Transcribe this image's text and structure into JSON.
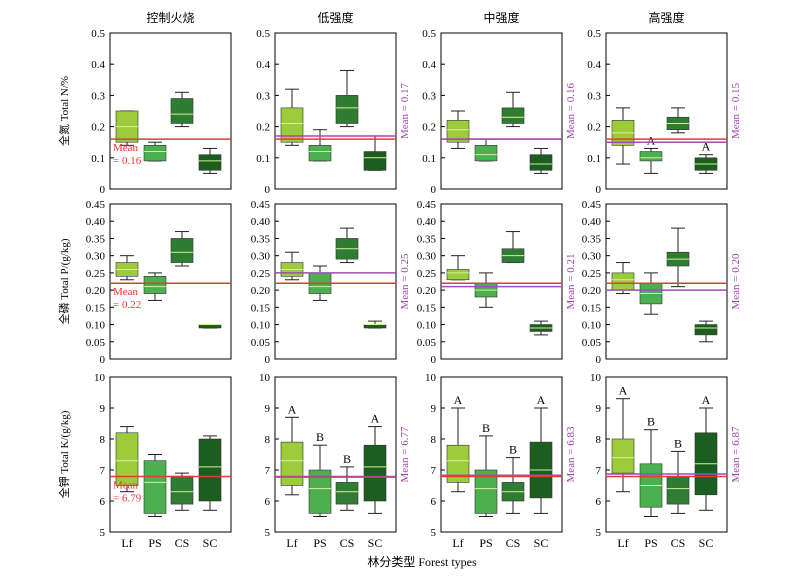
{
  "figure": {
    "xlabel": "林分类型 Forest types",
    "columns": [
      "控制火烧",
      "低强度",
      "中强度",
      "高强度"
    ],
    "categories": [
      "Lf",
      "PS",
      "CS",
      "SC"
    ],
    "colors": {
      "Lf": "#9ccc3c",
      "PS": "#4caf50",
      "CS": "#2e7d32",
      "SC": "#1b5e20",
      "control_mean_line": "#e53935",
      "treatment_mean_line": "#9c4fb5",
      "control_mean_text": "#e53935",
      "treatment_mean_text": "#a040b0"
    }
  },
  "chart_data": [
    {
      "type": "box",
      "ylabel": "全氮 Total N/%",
      "ylim": [
        0,
        0.5
      ],
      "yticks": [
        "0",
        "0.1",
        "0.2",
        "0.3",
        "0.4",
        "0.5"
      ],
      "control_mean_label": "Mean\n= 0.16",
      "control_mean": 0.16,
      "panels": [
        {
          "title": "控制火烧",
          "treatment_mean": null,
          "treatment_mean_label": "",
          "boxes": [
            {
              "category": "Lf",
              "min": 0.14,
              "q1": 0.15,
              "median": 0.2,
              "q3": 0.25,
              "max": 0.25,
              "letter": ""
            },
            {
              "category": "PS",
              "min": 0.09,
              "q1": 0.09,
              "median": 0.12,
              "q3": 0.14,
              "max": 0.15,
              "letter": ""
            },
            {
              "category": "CS",
              "min": 0.2,
              "q1": 0.21,
              "median": 0.24,
              "q3": 0.29,
              "max": 0.31,
              "letter": ""
            },
            {
              "category": "SC",
              "min": 0.05,
              "q1": 0.06,
              "median": 0.09,
              "q3": 0.11,
              "max": 0.13,
              "letter": ""
            }
          ]
        },
        {
          "title": "低强度",
          "treatment_mean": 0.17,
          "treatment_mean_label": "Mean = 0.17",
          "boxes": [
            {
              "category": "Lf",
              "min": 0.14,
              "q1": 0.15,
              "median": 0.21,
              "q3": 0.26,
              "max": 0.32,
              "letter": ""
            },
            {
              "category": "PS",
              "min": 0.09,
              "q1": 0.09,
              "median": 0.12,
              "q3": 0.14,
              "max": 0.19,
              "letter": ""
            },
            {
              "category": "CS",
              "min": 0.2,
              "q1": 0.21,
              "median": 0.26,
              "q3": 0.3,
              "max": 0.38,
              "letter": ""
            },
            {
              "category": "SC",
              "min": 0.06,
              "q1": 0.06,
              "median": 0.1,
              "q3": 0.12,
              "max": 0.17,
              "letter": ""
            }
          ]
        },
        {
          "title": "中强度",
          "treatment_mean": 0.16,
          "treatment_mean_label": "Mean = 0.16",
          "boxes": [
            {
              "category": "Lf",
              "min": 0.13,
              "q1": 0.15,
              "median": 0.19,
              "q3": 0.22,
              "max": 0.25,
              "letter": ""
            },
            {
              "category": "PS",
              "min": 0.09,
              "q1": 0.09,
              "median": 0.11,
              "q3": 0.14,
              "max": 0.16,
              "letter": ""
            },
            {
              "category": "CS",
              "min": 0.2,
              "q1": 0.21,
              "median": 0.23,
              "q3": 0.26,
              "max": 0.31,
              "letter": ""
            },
            {
              "category": "SC",
              "min": 0.05,
              "q1": 0.06,
              "median": 0.08,
              "q3": 0.11,
              "max": 0.13,
              "letter": ""
            }
          ]
        },
        {
          "title": "高强度",
          "treatment_mean": 0.15,
          "treatment_mean_label": "Mean = 0.15",
          "boxes": [
            {
              "category": "Lf",
              "min": 0.08,
              "q1": 0.14,
              "median": 0.18,
              "q3": 0.22,
              "max": 0.26,
              "letter": ""
            },
            {
              "category": "PS",
              "min": 0.05,
              "q1": 0.09,
              "median": 0.1,
              "q3": 0.12,
              "max": 0.13,
              "letter": "A"
            },
            {
              "category": "CS",
              "min": 0.18,
              "q1": 0.19,
              "median": 0.21,
              "q3": 0.23,
              "max": 0.26,
              "letter": ""
            },
            {
              "category": "SC",
              "min": 0.05,
              "q1": 0.06,
              "median": 0.08,
              "q3": 0.1,
              "max": 0.11,
              "letter": "A"
            }
          ]
        }
      ]
    },
    {
      "type": "box",
      "ylabel": "全磷 Total P/(g/kg)",
      "ylim": [
        0,
        0.45
      ],
      "yticks": [
        "0",
        "0.05",
        "0.10",
        "0.15",
        "0.20",
        "0.25",
        "0.30",
        "0.35",
        "0.40",
        "0.45"
      ],
      "control_mean_label": "Mean\n= 0.22",
      "control_mean": 0.22,
      "panels": [
        {
          "title": "控制火烧",
          "treatment_mean": null,
          "treatment_mean_label": "",
          "boxes": [
            {
              "category": "Lf",
              "min": 0.23,
              "q1": 0.24,
              "median": 0.26,
              "q3": 0.28,
              "max": 0.3,
              "letter": ""
            },
            {
              "category": "PS",
              "min": 0.17,
              "q1": 0.19,
              "median": 0.21,
              "q3": 0.24,
              "max": 0.25,
              "letter": ""
            },
            {
              "category": "CS",
              "min": 0.27,
              "q1": 0.28,
              "median": 0.31,
              "q3": 0.35,
              "max": 0.37,
              "letter": ""
            },
            {
              "category": "SC",
              "min": 0.09,
              "q1": 0.09,
              "median": 0.1,
              "q3": 0.1,
              "max": 0.1,
              "letter": ""
            }
          ]
        },
        {
          "title": "低强度",
          "treatment_mean": 0.25,
          "treatment_mean_label": "Mean = 0.25",
          "boxes": [
            {
              "category": "Lf",
              "min": 0.23,
              "q1": 0.24,
              "median": 0.26,
              "q3": 0.28,
              "max": 0.31,
              "letter": ""
            },
            {
              "category": "PS",
              "min": 0.17,
              "q1": 0.19,
              "median": 0.21,
              "q3": 0.25,
              "max": 0.27,
              "letter": ""
            },
            {
              "category": "CS",
              "min": 0.28,
              "q1": 0.29,
              "median": 0.32,
              "q3": 0.35,
              "max": 0.38,
              "letter": ""
            },
            {
              "category": "SC",
              "min": 0.09,
              "q1": 0.09,
              "median": 0.1,
              "q3": 0.1,
              "max": 0.11,
              "letter": ""
            }
          ]
        },
        {
          "title": "中强度",
          "treatment_mean": 0.21,
          "treatment_mean_label": "Mean = 0.21",
          "boxes": [
            {
              "category": "Lf",
              "min": 0.23,
              "q1": 0.23,
              "median": 0.25,
              "q3": 0.26,
              "max": 0.3,
              "letter": ""
            },
            {
              "category": "PS",
              "min": 0.15,
              "q1": 0.18,
              "median": 0.2,
              "q3": 0.22,
              "max": 0.25,
              "letter": ""
            },
            {
              "category": "CS",
              "min": 0.28,
              "q1": 0.28,
              "median": 0.3,
              "q3": 0.32,
              "max": 0.37,
              "letter": ""
            },
            {
              "category": "SC",
              "min": 0.07,
              "q1": 0.08,
              "median": 0.09,
              "q3": 0.1,
              "max": 0.11,
              "letter": ""
            }
          ]
        },
        {
          "title": "高强度",
          "treatment_mean": 0.2,
          "treatment_mean_label": "Mean = 0.20",
          "boxes": [
            {
              "category": "Lf",
              "min": 0.19,
              "q1": 0.2,
              "median": 0.23,
              "q3": 0.25,
              "max": 0.28,
              "letter": ""
            },
            {
              "category": "PS",
              "min": 0.13,
              "q1": 0.16,
              "median": 0.19,
              "q3": 0.22,
              "max": 0.25,
              "letter": ""
            },
            {
              "category": "CS",
              "min": 0.21,
              "q1": 0.27,
              "median": 0.29,
              "q3": 0.31,
              "max": 0.38,
              "letter": ""
            },
            {
              "category": "SC",
              "min": 0.05,
              "q1": 0.07,
              "median": 0.09,
              "q3": 0.1,
              "max": 0.11,
              "letter": ""
            }
          ]
        }
      ]
    },
    {
      "type": "box",
      "ylabel": "全钾 Total K/(g/kg)",
      "ylim": [
        5,
        10
      ],
      "yticks": [
        "5",
        "6",
        "7",
        "8",
        "9",
        "10"
      ],
      "control_mean_label": "Mean\n= 6.79",
      "control_mean": 6.79,
      "panels": [
        {
          "title": "控制火烧",
          "treatment_mean": null,
          "treatment_mean_label": "",
          "boxes": [
            {
              "category": "Lf",
              "min": 6.3,
              "q1": 6.5,
              "median": 7.3,
              "q3": 8.2,
              "max": 8.4,
              "letter": ""
            },
            {
              "category": "PS",
              "min": 5.5,
              "q1": 5.6,
              "median": 6.6,
              "q3": 7.3,
              "max": 7.5,
              "letter": ""
            },
            {
              "category": "CS",
              "min": 5.7,
              "q1": 5.9,
              "median": 6.3,
              "q3": 6.8,
              "max": 6.9,
              "letter": ""
            },
            {
              "category": "SC",
              "min": 5.7,
              "q1": 6.0,
              "median": 7.1,
              "q3": 8.0,
              "max": 8.1,
              "letter": ""
            }
          ]
        },
        {
          "title": "低强度",
          "treatment_mean": 6.77,
          "treatment_mean_label": "Mean = 6.77",
          "boxes": [
            {
              "category": "Lf",
              "min": 6.2,
              "q1": 6.5,
              "median": 7.3,
              "q3": 7.9,
              "max": 8.7,
              "letter": "A"
            },
            {
              "category": "PS",
              "min": 5.5,
              "q1": 5.6,
              "median": 6.4,
              "q3": 7.0,
              "max": 7.8,
              "letter": "B"
            },
            {
              "category": "CS",
              "min": 5.7,
              "q1": 5.9,
              "median": 6.3,
              "q3": 6.6,
              "max": 7.1,
              "letter": "B"
            },
            {
              "category": "SC",
              "min": 5.6,
              "q1": 6.0,
              "median": 7.1,
              "q3": 7.8,
              "max": 8.4,
              "letter": "A"
            }
          ]
        },
        {
          "title": "中强度",
          "treatment_mean": 6.83,
          "treatment_mean_label": "Mean = 6.83",
          "boxes": [
            {
              "category": "Lf",
              "min": 6.3,
              "q1": 6.6,
              "median": 7.3,
              "q3": 7.8,
              "max": 9.0,
              "letter": "A"
            },
            {
              "category": "PS",
              "min": 5.5,
              "q1": 5.6,
              "median": 6.4,
              "q3": 7.0,
              "max": 8.1,
              "letter": "B"
            },
            {
              "category": "CS",
              "min": 5.6,
              "q1": 6.0,
              "median": 6.3,
              "q3": 6.6,
              "max": 7.4,
              "letter": "B"
            },
            {
              "category": "SC",
              "min": 5.6,
              "q1": 6.1,
              "median": 7.0,
              "q3": 7.9,
              "max": 9.0,
              "letter": "A"
            }
          ]
        },
        {
          "title": "高强度",
          "treatment_mean": 6.87,
          "treatment_mean_label": "Mean = 6.87",
          "boxes": [
            {
              "category": "Lf",
              "min": 6.3,
              "q1": 6.9,
              "median": 7.4,
              "q3": 8.0,
              "max": 9.3,
              "letter": "A"
            },
            {
              "category": "PS",
              "min": 5.5,
              "q1": 5.8,
              "median": 6.5,
              "q3": 7.2,
              "max": 8.3,
              "letter": "B"
            },
            {
              "category": "CS",
              "min": 5.6,
              "q1": 5.9,
              "median": 6.4,
              "q3": 6.8,
              "max": 7.6,
              "letter": "B"
            },
            {
              "category": "SC",
              "min": 5.7,
              "q1": 6.2,
              "median": 7.2,
              "q3": 8.2,
              "max": 9.0,
              "letter": "A"
            }
          ]
        }
      ]
    }
  ]
}
